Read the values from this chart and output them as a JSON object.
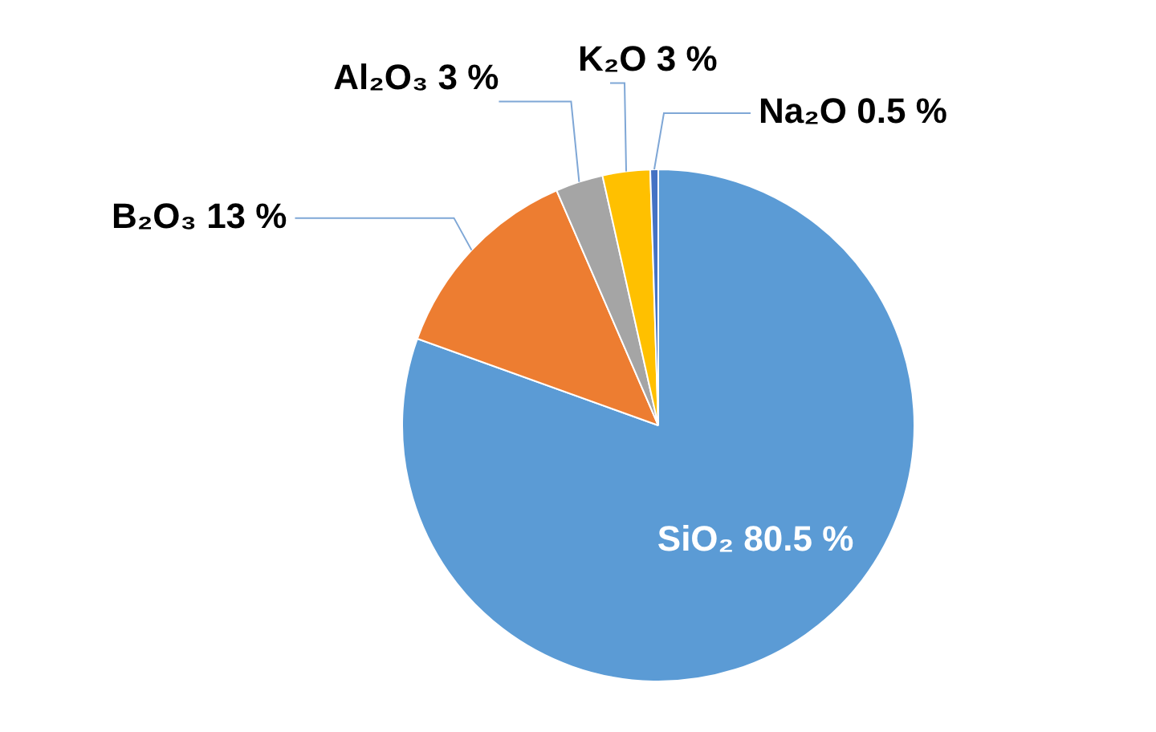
{
  "chart_data": {
    "type": "pie",
    "categories": [
      "SiO₂",
      "B₂O₃",
      "Al₂O₃",
      "K₂O",
      "Na₂O"
    ],
    "values": [
      80.5,
      13,
      3,
      3,
      0.5
    ],
    "value_labels": [
      "80.5 %",
      "13 %",
      "3 %",
      "3 %",
      "0.5 %"
    ],
    "colors": [
      "#5b9bd5",
      "#ed7d31",
      "#a5a5a5",
      "#ffc000",
      "#4472c4"
    ],
    "legend": false
  }
}
